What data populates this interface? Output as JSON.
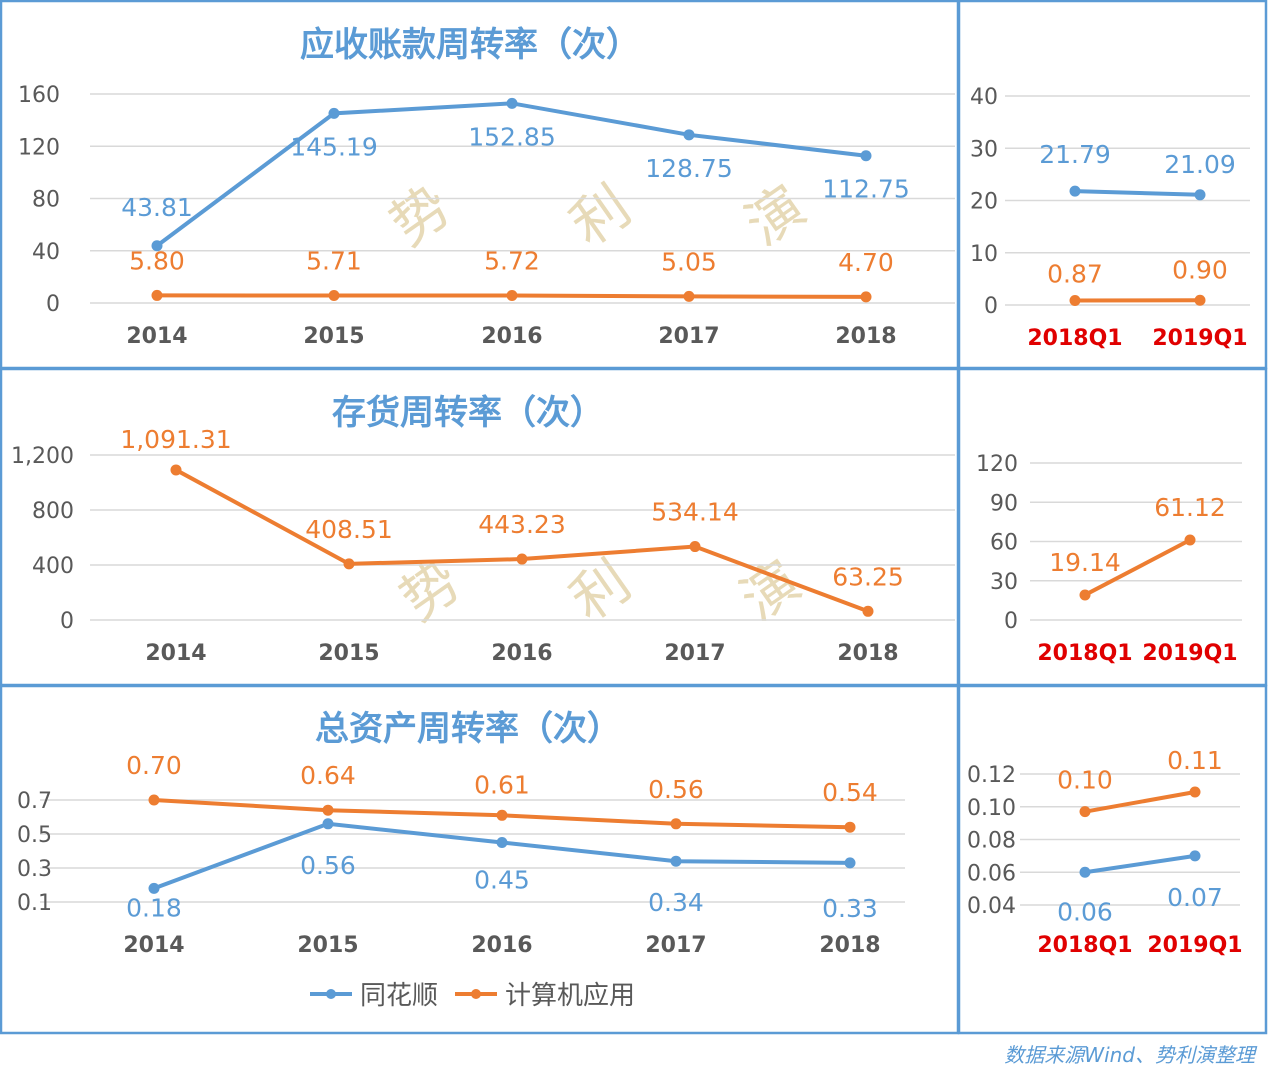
{
  "colors": {
    "thsc": "#5b9bd5",
    "industry": "#ed7d31",
    "quarter_axis": "#e00000"
  },
  "legend": [
    "同花顺",
    "计算机应用"
  ],
  "watermark": "势利演",
  "footer": "数据来源Wind、势利演整理",
  "chart_data": [
    {
      "type": "line",
      "title": "应收账款周转率（次）",
      "categories": [
        "2014",
        "2015",
        "2016",
        "2017",
        "2018"
      ],
      "yticks": [
        "0",
        "40",
        "80",
        "120",
        "160"
      ],
      "ylim": [
        0,
        160
      ],
      "grid": true,
      "series": [
        {
          "name": "同花顺",
          "values": [
            43.81,
            145.19,
            152.85,
            128.75,
            112.75
          ],
          "labels": [
            "43.81",
            "145.19",
            "152.85",
            "128.75",
            "112.75"
          ]
        },
        {
          "name": "计算机应用",
          "values": [
            5.8,
            5.71,
            5.72,
            5.05,
            4.7
          ],
          "labels": [
            "5.80",
            "5.71",
            "5.72",
            "5.05",
            "4.70"
          ]
        }
      ]
    },
    {
      "type": "line",
      "title": "",
      "categories": [
        "2018Q1",
        "2019Q1"
      ],
      "yticks": [
        "0",
        "10",
        "20",
        "30",
        "40"
      ],
      "ylim": [
        0,
        40
      ],
      "grid": true,
      "series": [
        {
          "name": "同花顺",
          "values": [
            21.79,
            21.09
          ],
          "labels": [
            "21.79",
            "21.09"
          ]
        },
        {
          "name": "计算机应用",
          "values": [
            0.87,
            0.9
          ],
          "labels": [
            "0.87",
            "0.90"
          ]
        }
      ]
    },
    {
      "type": "line",
      "title": "存货周转率（次）",
      "categories": [
        "2014",
        "2015",
        "2016",
        "2017",
        "2018"
      ],
      "yticks": [
        "0",
        "400",
        "800",
        "1,200"
      ],
      "ylim": [
        0,
        1200
      ],
      "grid": true,
      "series": [
        {
          "name": "计算机应用",
          "values": [
            1091.31,
            408.51,
            443.23,
            534.14,
            63.25
          ],
          "labels": [
            "1,091.31",
            "408.51",
            "443.23",
            "534.14",
            "63.25"
          ]
        }
      ]
    },
    {
      "type": "line",
      "title": "",
      "categories": [
        "2018Q1",
        "2019Q1"
      ],
      "yticks": [
        "0",
        "30",
        "60",
        "90",
        "120"
      ],
      "ylim": [
        0,
        120
      ],
      "grid": true,
      "series": [
        {
          "name": "计算机应用",
          "values": [
            19.14,
            61.12
          ],
          "labels": [
            "19.14",
            "61.12"
          ]
        }
      ]
    },
    {
      "type": "line",
      "title": "总资产周转率（次）",
      "categories": [
        "2014",
        "2015",
        "2016",
        "2017",
        "2018"
      ],
      "yticks": [
        "0.1",
        "0.3",
        "0.5",
        "0.7"
      ],
      "ylim": [
        0.1,
        0.7
      ],
      "grid": true,
      "series": [
        {
          "name": "同花顺",
          "values": [
            0.18,
            0.56,
            0.45,
            0.34,
            0.33
          ],
          "labels": [
            "0.18",
            "0.56",
            "0.45",
            "0.34",
            "0.33"
          ]
        },
        {
          "name": "计算机应用",
          "values": [
            0.7,
            0.64,
            0.61,
            0.56,
            0.54
          ],
          "labels": [
            "0.70",
            "0.64",
            "0.61",
            "0.56",
            "0.54"
          ]
        }
      ]
    },
    {
      "type": "line",
      "title": "",
      "categories": [
        "2018Q1",
        "2019Q1"
      ],
      "yticks": [
        "0.04",
        "0.06",
        "0.08",
        "0.10",
        "0.12"
      ],
      "ylim": [
        0.04,
        0.12
      ],
      "grid": true,
      "series": [
        {
          "name": "同花顺",
          "values": [
            0.06,
            0.07
          ],
          "labels": [
            "0.06",
            "0.07"
          ]
        },
        {
          "name": "计算机应用",
          "values": [
            0.097,
            0.109
          ],
          "labels": [
            "0.10",
            "0.11"
          ]
        }
      ]
    }
  ]
}
